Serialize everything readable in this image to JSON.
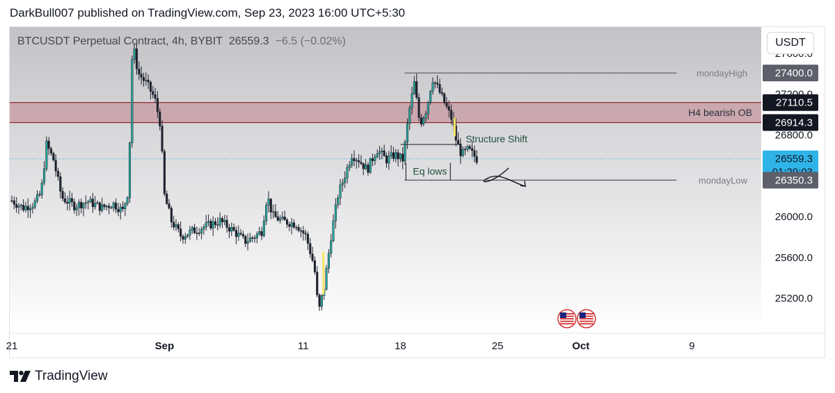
{
  "header": {
    "published_text": "DarkBull007 published on TradingView.com, Sep 23, 2023 16:00 UTC+5:30"
  },
  "footer": {
    "brand": "TradingView"
  },
  "legend": {
    "title": "BTCUSDT Perpetual Contract, 4h, BYBIT",
    "last": "26559.3",
    "change": "−6.5 (−0.02%)"
  },
  "unit_label": "USDT",
  "colors": {
    "up": "#26a69a",
    "down": "#1e222d",
    "zone_fill": "#c9a0a8",
    "zone_line": "#8b1c1c",
    "level_line": "#5d606b",
    "price_tag": "#2fb4e8",
    "dark_tag": "#131722",
    "grey_tag": "#5d606b"
  },
  "chart_data": {
    "type": "candlestick",
    "x_ticks": [
      {
        "label": "21",
        "day": 21
      },
      {
        "label": "Sep",
        "day": 32
      },
      {
        "label": "11",
        "day": 42
      },
      {
        "label": "18",
        "day": 49
      },
      {
        "label": "25",
        "day": 56
      },
      {
        "label": "Oct",
        "day": 62
      },
      {
        "label": "9",
        "day": 70
      }
    ],
    "y_ticks": [
      25200.0,
      25600.0,
      26000.0,
      26400.0,
      26800.0,
      27200.0,
      27600.0
    ],
    "y_tick_labels": [
      "25200.0",
      "25600.0",
      "26000.0",
      "26400.0",
      "26800.0",
      "27200.0",
      "27600.0"
    ],
    "ylim": [
      24850,
      27850
    ],
    "grid": false,
    "zones": [
      {
        "name": "H4 bearish OB",
        "low": 26914.3,
        "high": 27110.5,
        "low_label": "26914.3",
        "high_label": "27110.5"
      }
    ],
    "levels": [
      {
        "name": "mondayHigh",
        "value": 27400.0,
        "value_label": "27400.0"
      },
      {
        "name": "mondayLow",
        "value": 26350.3,
        "value_label": "26350.3"
      }
    ],
    "current_price": {
      "value": 26559.3,
      "label": "26559.3",
      "countdown": "01:29:03"
    },
    "annotations": {
      "structure_shift": "Structure Shift",
      "eq_lows": "Eq lows"
    },
    "price_path": [
      [
        21.0,
        26150
      ],
      [
        21.8,
        26080
      ],
      [
        22.6,
        26120
      ],
      [
        23.1,
        26220
      ],
      [
        23.5,
        26700
      ],
      [
        24.0,
        26550
      ],
      [
        24.6,
        26180
      ],
      [
        25.5,
        26100
      ],
      [
        26.5,
        26140
      ],
      [
        27.5,
        26080
      ],
      [
        28.3,
        26120
      ],
      [
        29.0,
        26050
      ],
      [
        29.4,
        26250
      ],
      [
        29.7,
        27700
      ],
      [
        30.1,
        27400
      ],
      [
        30.7,
        27300
      ],
      [
        31.3,
        27150
      ],
      [
        31.7,
        26900
      ],
      [
        32.0,
        26200
      ],
      [
        32.5,
        25950
      ],
      [
        33.2,
        25800
      ],
      [
        34.0,
        25850
      ],
      [
        35.0,
        25900
      ],
      [
        36.0,
        25950
      ],
      [
        37.0,
        25850
      ],
      [
        37.8,
        25750
      ],
      [
        38.5,
        25800
      ],
      [
        39.0,
        25850
      ],
      [
        39.4,
        26200
      ],
      [
        39.8,
        26000
      ],
      [
        40.5,
        25950
      ],
      [
        41.5,
        25920
      ],
      [
        42.2,
        25800
      ],
      [
        42.8,
        25500
      ],
      [
        43.1,
        25050
      ],
      [
        43.5,
        25300
      ],
      [
        44.0,
        25800
      ],
      [
        44.5,
        26200
      ],
      [
        45.0,
        26400
      ],
      [
        45.5,
        26600
      ],
      [
        46.0,
        26550
      ],
      [
        46.6,
        26450
      ],
      [
        47.3,
        26650
      ],
      [
        48.0,
        26550
      ],
      [
        48.6,
        26600
      ],
      [
        49.2,
        26550
      ],
      [
        49.6,
        27000
      ],
      [
        50.0,
        27300
      ],
      [
        50.4,
        26900
      ],
      [
        50.9,
        27050
      ],
      [
        51.3,
        27350
      ],
      [
        51.7,
        27250
      ],
      [
        52.2,
        27100
      ],
      [
        52.7,
        26950
      ],
      [
        53.0,
        26750
      ],
      [
        53.4,
        26600
      ],
      [
        53.9,
        26650
      ],
      [
        54.5,
        26560
      ]
    ]
  }
}
